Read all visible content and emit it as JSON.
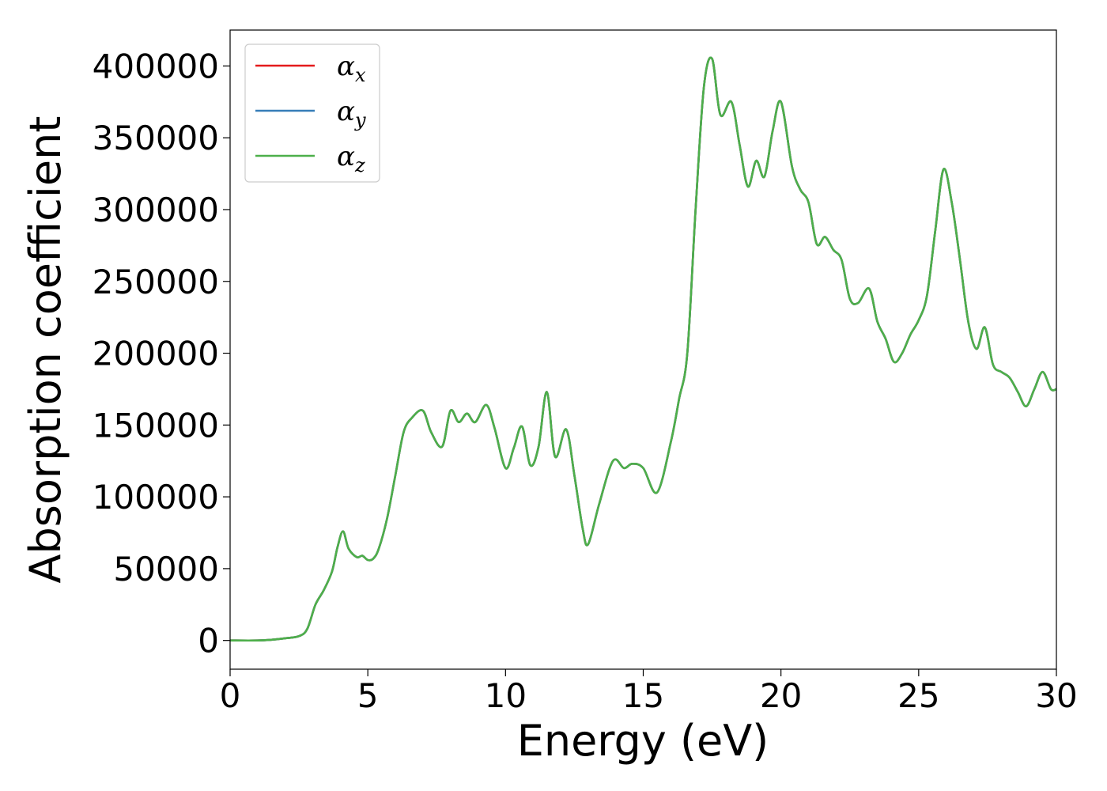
{
  "chart_data": {
    "type": "line",
    "title": "",
    "xlabel": "Energy (eV)",
    "ylabel": "Absorption coefficient",
    "xlim": [
      0,
      30
    ],
    "ylim": [
      -20000,
      425000
    ],
    "xticks": [
      0,
      5,
      10,
      15,
      20,
      25,
      30
    ],
    "yticks": [
      0,
      50000,
      100000,
      150000,
      200000,
      250000,
      300000,
      350000,
      400000
    ],
    "grid": false,
    "legend_position": "top-left",
    "series": [
      {
        "name": "α_x",
        "symbol": "α",
        "sub": "x",
        "color": "#e41a1c",
        "x": [
          0,
          1,
          1.5,
          2,
          2.5,
          2.8,
          3.1,
          3.4,
          3.7,
          3.9,
          4.1,
          4.3,
          4.6,
          4.8,
          5.0,
          5.2,
          5.4,
          5.7,
          6.0,
          6.3,
          6.6,
          7.0,
          7.3,
          7.7,
          8.0,
          8.3,
          8.6,
          8.9,
          9.3,
          9.6,
          10.0,
          10.3,
          10.6,
          10.9,
          11.2,
          11.5,
          11.8,
          12.2,
          12.5,
          12.8,
          13.0,
          13.4,
          13.9,
          14.3,
          14.6,
          15.0,
          15.5,
          16.0,
          16.3,
          16.6,
          16.9,
          17.2,
          17.5,
          17.8,
          18.2,
          18.5,
          18.8,
          19.1,
          19.4,
          19.7,
          20.0,
          20.4,
          20.7,
          21.0,
          21.3,
          21.6,
          21.9,
          22.2,
          22.5,
          22.8,
          23.2,
          23.5,
          23.8,
          24.1,
          24.4,
          24.7,
          25.0,
          25.3,
          25.6,
          25.9,
          26.2,
          26.5,
          26.8,
          27.1,
          27.4,
          27.7,
          28.0,
          28.3,
          28.6,
          28.9,
          29.2,
          29.5,
          29.8,
          30
        ],
        "y": [
          0,
          0,
          500,
          1500,
          3000,
          8000,
          25000,
          35000,
          48000,
          65000,
          76000,
          64000,
          58000,
          59000,
          56000,
          57000,
          64000,
          85000,
          115000,
          145000,
          155000,
          160000,
          145000,
          135000,
          160000,
          152000,
          158000,
          152000,
          164000,
          148000,
          120000,
          134000,
          149000,
          122000,
          135000,
          173000,
          128000,
          147000,
          115000,
          78000,
          67000,
          95000,
          125000,
          120000,
          123000,
          120000,
          103000,
          138000,
          168000,
          200000,
          300000,
          385000,
          405000,
          366000,
          375000,
          345000,
          316000,
          334000,
          323000,
          355000,
          375000,
          330000,
          314000,
          305000,
          276000,
          281000,
          272000,
          265000,
          238000,
          235000,
          245000,
          222000,
          210000,
          194000,
          200000,
          213000,
          223000,
          240000,
          285000,
          328000,
          305000,
          265000,
          222000,
          203000,
          218000,
          192000,
          187000,
          183000,
          173000,
          163000,
          175000,
          187000,
          175000,
          175000
        ]
      },
      {
        "name": "α_y",
        "symbol": "α",
        "sub": "y",
        "color": "#377eb8",
        "x": [
          0,
          1,
          1.5,
          2,
          2.5,
          2.8,
          3.1,
          3.4,
          3.7,
          3.9,
          4.1,
          4.3,
          4.6,
          4.8,
          5.0,
          5.2,
          5.4,
          5.7,
          6.0,
          6.3,
          6.6,
          7.0,
          7.3,
          7.7,
          8.0,
          8.3,
          8.6,
          8.9,
          9.3,
          9.6,
          10.0,
          10.3,
          10.6,
          10.9,
          11.2,
          11.5,
          11.8,
          12.2,
          12.5,
          12.8,
          13.0,
          13.4,
          13.9,
          14.3,
          14.6,
          15.0,
          15.5,
          16.0,
          16.3,
          16.6,
          16.9,
          17.2,
          17.5,
          17.8,
          18.2,
          18.5,
          18.8,
          19.1,
          19.4,
          19.7,
          20.0,
          20.4,
          20.7,
          21.0,
          21.3,
          21.6,
          21.9,
          22.2,
          22.5,
          22.8,
          23.2,
          23.5,
          23.8,
          24.1,
          24.4,
          24.7,
          25.0,
          25.3,
          25.6,
          25.9,
          26.2,
          26.5,
          26.8,
          27.1,
          27.4,
          27.7,
          28.0,
          28.3,
          28.6,
          28.9,
          29.2,
          29.5,
          29.8,
          30
        ],
        "y": [
          0,
          0,
          500,
          1500,
          3000,
          8000,
          25000,
          35000,
          48000,
          65000,
          76000,
          64000,
          58000,
          59000,
          56000,
          57000,
          64000,
          85000,
          115000,
          145000,
          155000,
          160000,
          145000,
          135000,
          160000,
          152000,
          158000,
          152000,
          164000,
          148000,
          120000,
          134000,
          149000,
          122000,
          135000,
          173000,
          128000,
          147000,
          115000,
          78000,
          67000,
          95000,
          125000,
          120000,
          123000,
          120000,
          103000,
          138000,
          168000,
          200000,
          300000,
          385000,
          405000,
          366000,
          375000,
          345000,
          316000,
          334000,
          323000,
          355000,
          375000,
          330000,
          314000,
          305000,
          276000,
          281000,
          272000,
          265000,
          238000,
          235000,
          245000,
          222000,
          210000,
          194000,
          200000,
          213000,
          223000,
          240000,
          285000,
          328000,
          305000,
          265000,
          222000,
          203000,
          218000,
          192000,
          187000,
          183000,
          173000,
          163000,
          175000,
          187000,
          175000,
          175000
        ]
      },
      {
        "name": "α_z",
        "symbol": "α",
        "sub": "z",
        "color": "#4daf4a",
        "x": [
          0,
          1,
          1.5,
          2,
          2.5,
          2.8,
          3.1,
          3.4,
          3.7,
          3.9,
          4.1,
          4.3,
          4.6,
          4.8,
          5.0,
          5.2,
          5.4,
          5.7,
          6.0,
          6.3,
          6.6,
          7.0,
          7.3,
          7.7,
          8.0,
          8.3,
          8.6,
          8.9,
          9.3,
          9.6,
          10.0,
          10.3,
          10.6,
          10.9,
          11.2,
          11.5,
          11.8,
          12.2,
          12.5,
          12.8,
          13.0,
          13.4,
          13.9,
          14.3,
          14.6,
          15.0,
          15.5,
          16.0,
          16.3,
          16.6,
          16.9,
          17.2,
          17.5,
          17.8,
          18.2,
          18.5,
          18.8,
          19.1,
          19.4,
          19.7,
          20.0,
          20.4,
          20.7,
          21.0,
          21.3,
          21.6,
          21.9,
          22.2,
          22.5,
          22.8,
          23.2,
          23.5,
          23.8,
          24.1,
          24.4,
          24.7,
          25.0,
          25.3,
          25.6,
          25.9,
          26.2,
          26.5,
          26.8,
          27.1,
          27.4,
          27.7,
          28.0,
          28.3,
          28.6,
          28.9,
          29.2,
          29.5,
          29.8,
          30
        ],
        "y": [
          0,
          0,
          500,
          1500,
          3000,
          8000,
          25000,
          35000,
          48000,
          65000,
          76000,
          64000,
          58000,
          59000,
          56000,
          57000,
          64000,
          85000,
          115000,
          145000,
          155000,
          160000,
          145000,
          135000,
          160000,
          152000,
          158000,
          152000,
          164000,
          148000,
          120000,
          134000,
          149000,
          122000,
          135000,
          173000,
          128000,
          147000,
          115000,
          78000,
          67000,
          95000,
          125000,
          120000,
          123000,
          120000,
          103000,
          138000,
          168000,
          200000,
          300000,
          385000,
          405000,
          366000,
          375000,
          345000,
          316000,
          334000,
          323000,
          355000,
          375000,
          330000,
          314000,
          305000,
          276000,
          281000,
          272000,
          265000,
          238000,
          235000,
          245000,
          222000,
          210000,
          194000,
          200000,
          213000,
          223000,
          240000,
          285000,
          328000,
          305000,
          265000,
          222000,
          203000,
          218000,
          192000,
          187000,
          183000,
          173000,
          163000,
          175000,
          187000,
          175000,
          175000
        ]
      }
    ]
  }
}
